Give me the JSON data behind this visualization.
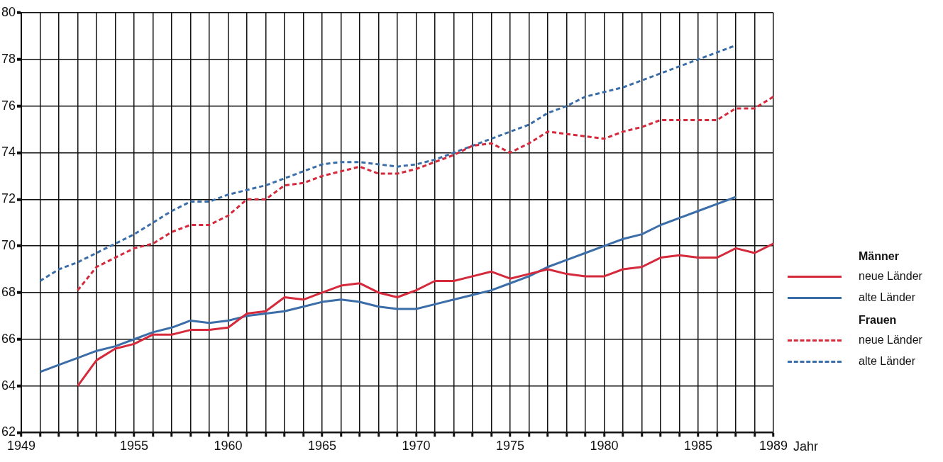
{
  "chart_data": {
    "type": "line",
    "xlabel": "Jahr",
    "annotations": [
      "Männer",
      "Frauen"
    ],
    "xlim": [
      1949,
      1989
    ],
    "ylim": [
      62,
      80
    ],
    "xticks": [
      1949,
      {
        "value": 1950,
        "label": null
      },
      {
        "value": 1951,
        "label": null
      },
      {
        "value": 1952,
        "label": null
      },
      {
        "value": 1953,
        "label": null
      },
      {
        "value": 1954,
        "label": null
      },
      1955,
      {
        "value": 1956,
        "label": null
      },
      {
        "value": 1957,
        "label": null
      },
      {
        "value": 1958,
        "label": null
      },
      {
        "value": 1959,
        "label": null
      },
      1960,
      {
        "value": 1961,
        "label": null
      },
      {
        "value": 1962,
        "label": null
      },
      {
        "value": 1963,
        "label": null
      },
      {
        "value": 1964,
        "label": null
      },
      1965,
      {
        "value": 1966,
        "label": null
      },
      {
        "value": 1967,
        "label": null
      },
      {
        "value": 1968,
        "label": null
      },
      {
        "value": 1969,
        "label": null
      },
      1970,
      {
        "value": 1971,
        "label": null
      },
      {
        "value": 1972,
        "label": null
      },
      {
        "value": 1973,
        "label": null
      },
      {
        "value": 1974,
        "label": null
      },
      1975,
      {
        "value": 1976,
        "label": null
      },
      {
        "value": 1977,
        "label": null
      },
      {
        "value": 1978,
        "label": null
      },
      {
        "value": 1979,
        "label": null
      },
      1980,
      {
        "value": 1981,
        "label": null
      },
      {
        "value": 1982,
        "label": null
      },
      {
        "value": 1983,
        "label": null
      },
      {
        "value": 1984,
        "label": null
      },
      1985,
      {
        "value": 1986,
        "label": null
      },
      {
        "value": 1987,
        "label": null
      },
      {
        "value": 1988,
        "label": null
      },
      1989
    ],
    "yticks": [
      62,
      64,
      66,
      68,
      70,
      72,
      74,
      76,
      78,
      80
    ],
    "grid": true,
    "legend": "right",
    "marker": "none",
    "series": [
      {
        "name": "neue Länder",
        "color": "#d42a3c",
        "line_style": "solid",
        "x": [
          1952,
          1953,
          1954,
          1955,
          1956,
          1957,
          1958,
          1959,
          1960,
          1961,
          1962,
          1963,
          1964,
          1965,
          1966,
          1967,
          1968,
          1969,
          1970,
          1971,
          1972,
          1973,
          1974,
          1975,
          1976,
          1977,
          1978,
          1979,
          1980,
          1981,
          1982,
          1983,
          1984,
          1985,
          1986,
          1987,
          1988,
          1989
        ],
        "values": [
          64.0,
          65.1,
          65.6,
          65.8,
          66.2,
          66.2,
          66.4,
          66.4,
          66.5,
          67.1,
          67.2,
          67.8,
          67.7,
          68.0,
          68.3,
          68.4,
          68.0,
          67.8,
          68.1,
          68.5,
          68.5,
          68.7,
          68.9,
          68.6,
          68.8,
          69.0,
          68.8,
          68.7,
          68.7,
          69.0,
          69.1,
          69.5,
          69.6,
          69.5,
          69.5,
          69.9,
          69.7,
          70.1
        ]
      },
      {
        "name": "alte Länder",
        "color": "#3b6ea8",
        "line_style": "solid",
        "x": [
          1950,
          1951,
          1952,
          1953,
          1954,
          1955,
          1956,
          1957,
          1958,
          1959,
          1960,
          1961,
          1962,
          1963,
          1964,
          1965,
          1966,
          1967,
          1968,
          1969,
          1970,
          1971,
          1972,
          1973,
          1974,
          1975,
          1976,
          1977,
          1978,
          1979,
          1980,
          1981,
          1982,
          1983,
          1984,
          1985,
          1986,
          1987
        ],
        "values": [
          64.6,
          64.9,
          65.2,
          65.5,
          65.7,
          66.0,
          66.3,
          66.5,
          66.8,
          66.7,
          66.8,
          67.0,
          67.1,
          67.2,
          67.4,
          67.6,
          67.7,
          67.6,
          67.4,
          67.3,
          67.3,
          67.5,
          67.7,
          67.9,
          68.1,
          68.4,
          68.7,
          69.1,
          69.4,
          69.7,
          70.0,
          70.3,
          70.5,
          70.9,
          71.2,
          71.5,
          71.8,
          72.1
        ]
      },
      {
        "name": "neue Länder",
        "color": "#d42a3c",
        "line_style": "dashed",
        "x": [
          1952,
          1953,
          1954,
          1955,
          1956,
          1957,
          1958,
          1959,
          1960,
          1961,
          1962,
          1963,
          1964,
          1965,
          1966,
          1967,
          1968,
          1969,
          1970,
          1971,
          1972,
          1973,
          1974,
          1975,
          1976,
          1977,
          1978,
          1979,
          1980,
          1981,
          1982,
          1983,
          1984,
          1985,
          1986,
          1987,
          1988,
          1989
        ],
        "values": [
          68.1,
          69.1,
          69.5,
          69.9,
          70.1,
          70.6,
          70.9,
          70.9,
          71.3,
          72.0,
          72.0,
          72.6,
          72.7,
          73.0,
          73.2,
          73.4,
          73.1,
          73.1,
          73.3,
          73.6,
          73.9,
          74.3,
          74.4,
          74.0,
          74.4,
          74.9,
          74.8,
          74.7,
          74.6,
          74.9,
          75.1,
          75.4,
          75.4,
          75.4,
          75.4,
          75.9,
          75.9,
          76.4
        ]
      },
      {
        "name": "alte Länder",
        "color": "#3b6ea8",
        "line_style": "dashed",
        "x": [
          1950,
          1951,
          1952,
          1953,
          1954,
          1955,
          1956,
          1957,
          1958,
          1959,
          1960,
          1961,
          1962,
          1963,
          1964,
          1965,
          1966,
          1967,
          1968,
          1969,
          1970,
          1971,
          1972,
          1973,
          1974,
          1975,
          1976,
          1977,
          1978,
          1979,
          1980,
          1981,
          1982,
          1983,
          1984,
          1985,
          1986,
          1987
        ],
        "values": [
          68.5,
          69.0,
          69.3,
          69.7,
          70.1,
          70.5,
          71.0,
          71.5,
          71.9,
          71.9,
          72.2,
          72.4,
          72.6,
          72.9,
          73.2,
          73.5,
          73.6,
          73.6,
          73.5,
          73.4,
          73.5,
          73.7,
          74.0,
          74.3,
          74.6,
          74.9,
          75.2,
          75.7,
          76.0,
          76.4,
          76.6,
          76.8,
          77.1,
          77.4,
          77.7,
          78.0,
          78.3,
          78.6
        ]
      }
    ]
  }
}
